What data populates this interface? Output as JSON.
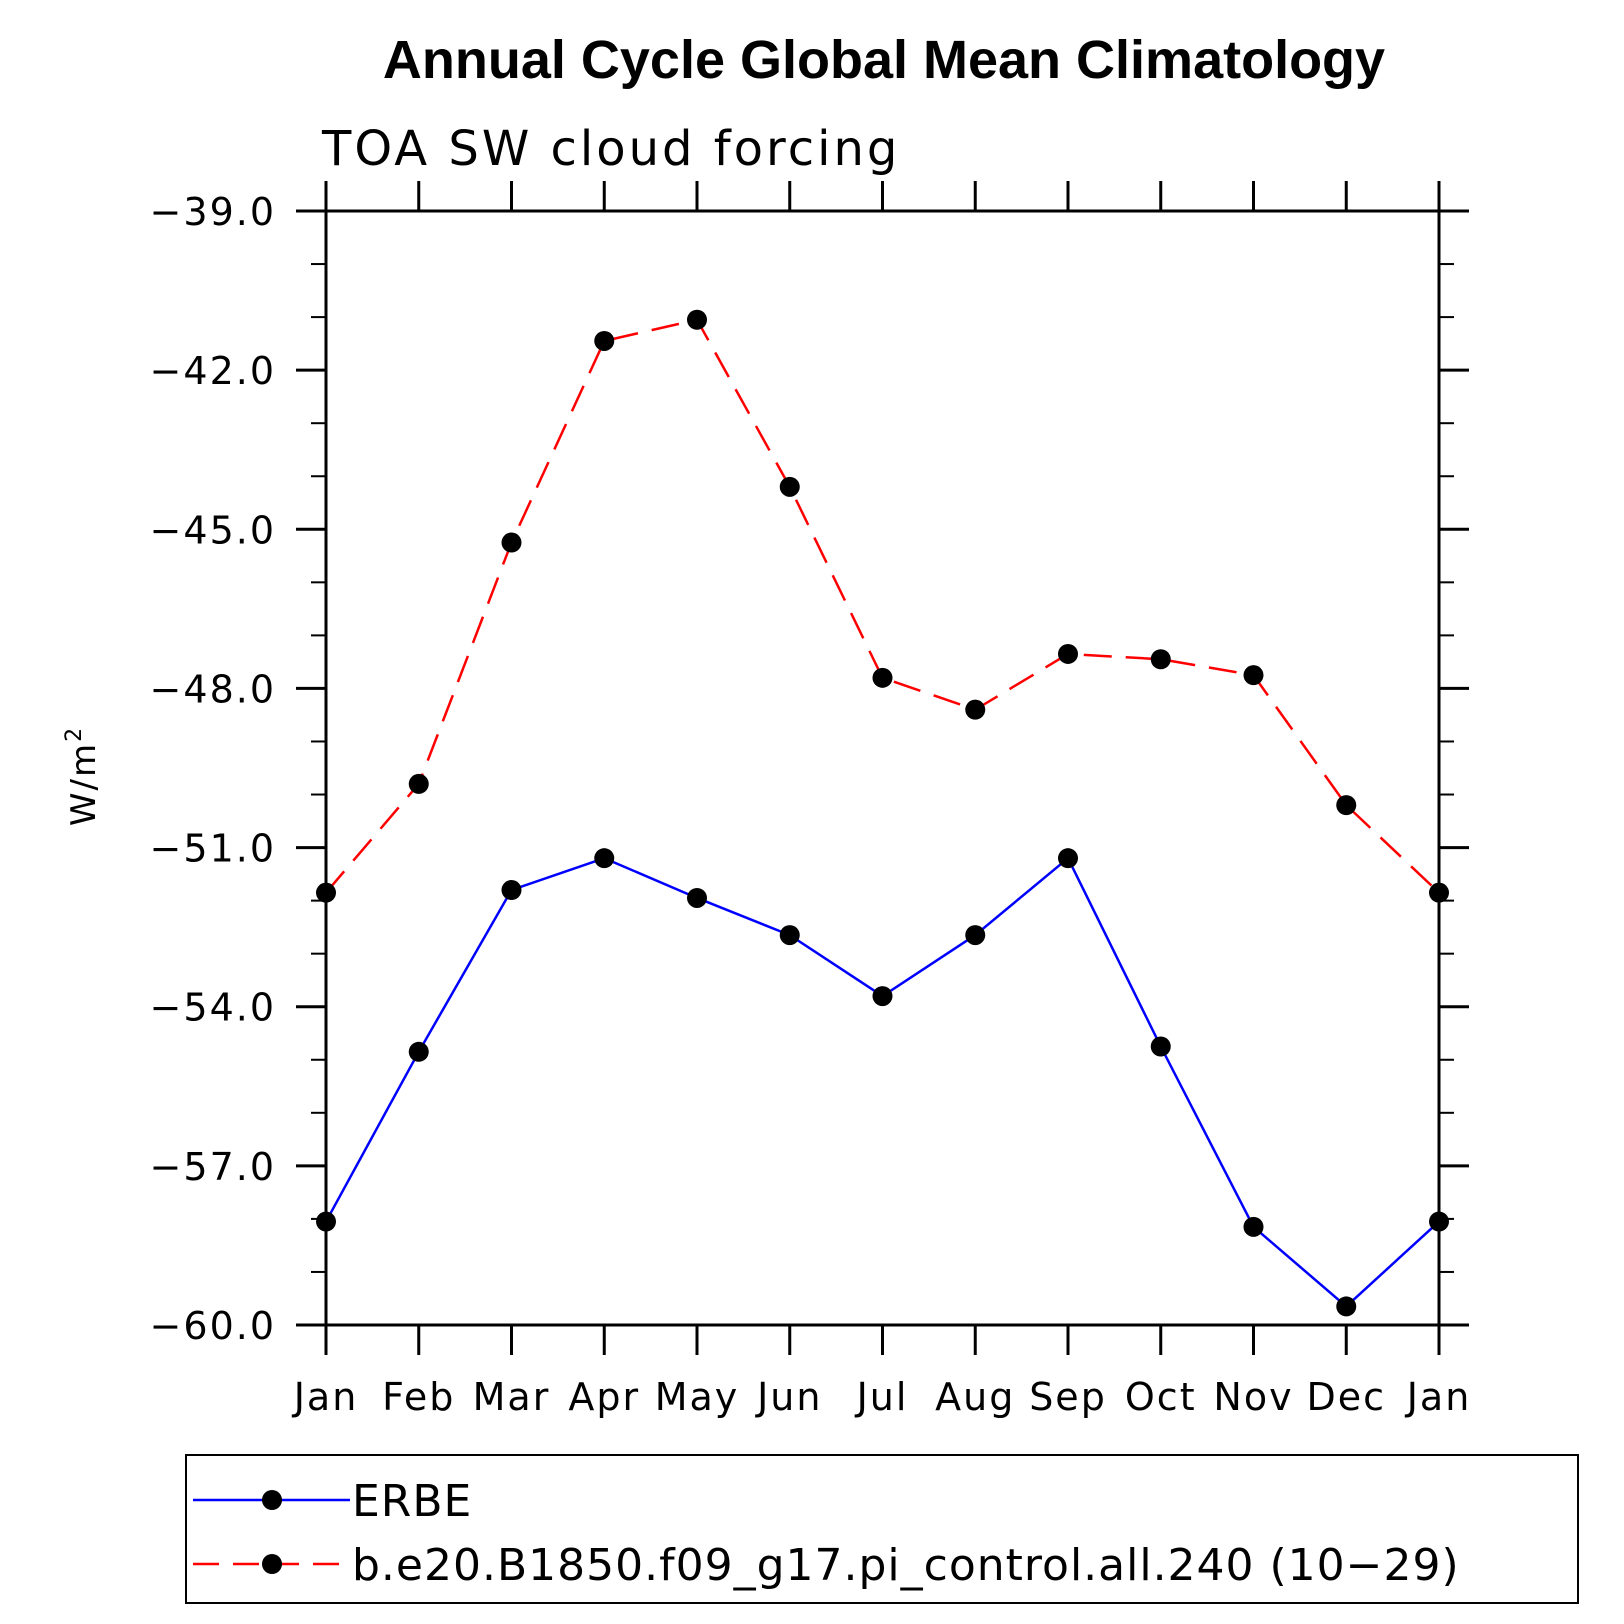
{
  "chart_data": {
    "type": "line",
    "title": "Annual Cycle Global Mean Climatology",
    "subtitle": "TOA SW cloud forcing",
    "ylabel": "W/m",
    "ylabel_sup": "2",
    "xlabel": "",
    "categories": [
      "Jan",
      "Feb",
      "Mar",
      "Apr",
      "May",
      "Jun",
      "Jul",
      "Aug",
      "Sep",
      "Oct",
      "Nov",
      "Dec",
      "Jan"
    ],
    "ylim": [
      -60.0,
      -39.0
    ],
    "yticks": [
      "-39.0",
      "-42.0",
      "-45.0",
      "-48.0",
      "-51.0",
      "-54.0",
      "-57.0",
      "-60.0"
    ],
    "ytick_values": [
      -39,
      -42,
      -45,
      -48,
      -51,
      -54,
      -57,
      -60
    ],
    "grid": false,
    "legend_position": "bottom",
    "series": [
      {
        "name": "ERBE",
        "color": "#0000ff",
        "dash": "solid",
        "marker": "filled-circle",
        "values": [
          -58.05,
          -54.85,
          -51.8,
          -51.2,
          -51.95,
          -52.65,
          -53.8,
          -52.65,
          -51.2,
          -54.75,
          -58.15,
          -59.65,
          -58.05
        ]
      },
      {
        "name": "b.e20.B1850.f09_g17.pi_control.all.240 (10-29)",
        "color": "#ff0000",
        "dash": "dashed",
        "marker": "filled-circle",
        "values": [
          -51.85,
          -49.8,
          -45.25,
          -41.45,
          -41.05,
          -44.2,
          -47.8,
          -48.4,
          -47.35,
          -47.45,
          -47.75,
          -50.2,
          -51.85
        ]
      }
    ]
  }
}
